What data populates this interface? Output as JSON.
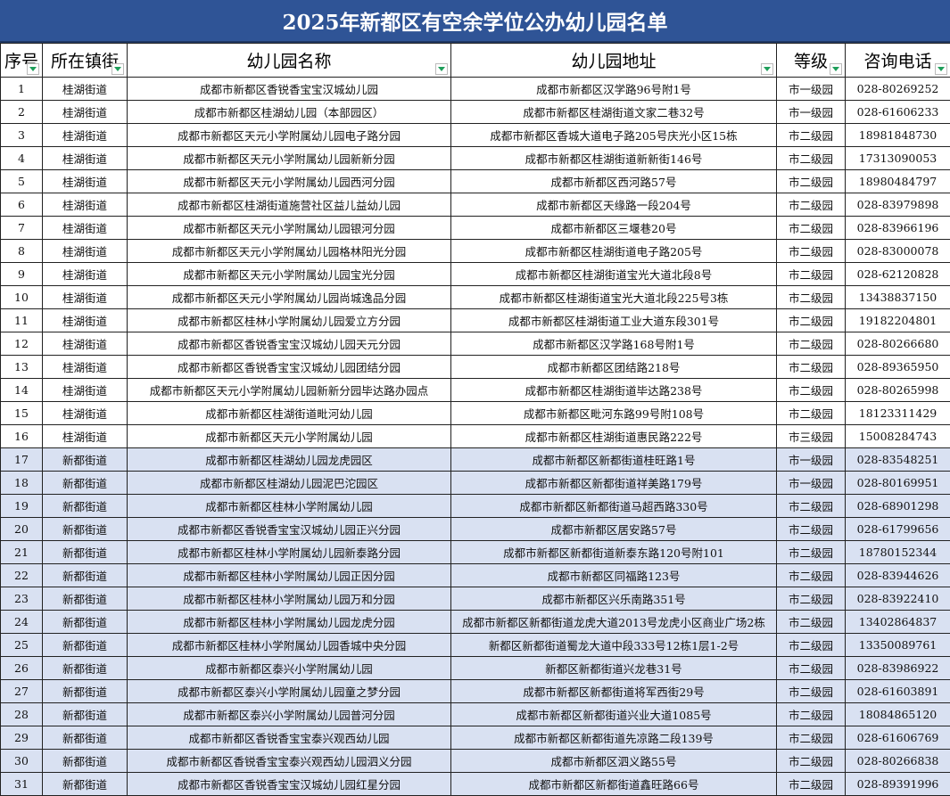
{
  "title": "2025年新都区有空余学位公办幼儿园名单",
  "colors": {
    "title_bg": "#2F5496",
    "highlight_row_bg": "#D9E1F2",
    "filter_arrow": "#1E9E5A"
  },
  "columns": [
    "序号",
    "所在镇街",
    "幼儿园名称",
    "幼儿园地址",
    "等级",
    "咨询电话"
  ],
  "rows": [
    [
      "1",
      "桂湖街道",
      "成都市新都区香锐香宝宝汉城幼儿园",
      "成都市新都区汉学路96号附1号",
      "市一级园",
      "028-80269252"
    ],
    [
      "2",
      "桂湖街道",
      "成都市新都区桂湖幼儿园（本部园区）",
      "成都市新都区桂湖街道文家二巷32号",
      "市一级园",
      "028-61606233"
    ],
    [
      "3",
      "桂湖街道",
      "成都市新都区天元小学附属幼儿园电子路分园",
      "成都市新都区香城大道电子路205号庆光小区15栋",
      "市二级园",
      "18981848730"
    ],
    [
      "4",
      "桂湖街道",
      "成都市新都区天元小学附属幼儿园新新分园",
      "成都市新都区桂湖街道新新街146号",
      "市二级园",
      "17313090053"
    ],
    [
      "5",
      "桂湖街道",
      "成都市新都区天元小学附属幼儿园西河分园",
      "成都市新都区西河路57号",
      "市二级园",
      "18980484797"
    ],
    [
      "6",
      "桂湖街道",
      "成都市新都区桂湖街道施营社区益儿益幼儿园",
      "成都市新都区天缘路一段204号",
      "市二级园",
      "028-83979898"
    ],
    [
      "7",
      "桂湖街道",
      "成都市新都区天元小学附属幼儿园银河分园",
      "成都市新都区三堰巷20号",
      "市二级园",
      "028-83966196"
    ],
    [
      "8",
      "桂湖街道",
      "成都市新都区天元小学附属幼儿园格林阳光分园",
      "成都市新都区桂湖街道电子路205号",
      "市二级园",
      "028-83000078"
    ],
    [
      "9",
      "桂湖街道",
      "成都市新都区天元小学附属幼儿园宝光分园",
      "成都市新都区桂湖街道宝光大道北段8号",
      "市二级园",
      "028-62120828"
    ],
    [
      "10",
      "桂湖街道",
      "成都市新都区天元小学附属幼儿园尚城逸品分园",
      "成都市新都区桂湖街道宝光大道北段225号3栋",
      "市二级园",
      "13438837150"
    ],
    [
      "11",
      "桂湖街道",
      "成都市新都区桂林小学附属幼儿园爱立方分园",
      "成都市新都区桂湖街道工业大道东段301号",
      "市二级园",
      "19182204801"
    ],
    [
      "12",
      "桂湖街道",
      "成都市新都区香锐香宝宝汉城幼儿园天元分园",
      "成都市新都区汉学路168号附1号",
      "市二级园",
      "028-80266680"
    ],
    [
      "13",
      "桂湖街道",
      "成都市新都区香锐香宝宝汉城幼儿园团结分园",
      "成都市新都区团结路218号",
      "市二级园",
      "028-89365950"
    ],
    [
      "14",
      "桂湖街道",
      "成都市新都区天元小学附属幼儿园新新分园毕达路办园点",
      "成都市新都区桂湖街道毕达路238号",
      "市二级园",
      "028-80265998"
    ],
    [
      "15",
      "桂湖街道",
      "成都市新都区桂湖街道毗河幼儿园",
      "成都市新都区毗河东路99号附108号",
      "市二级园",
      "18123311429"
    ],
    [
      "16",
      "桂湖街道",
      "成都市新都区天元小学附属幼儿园",
      "成都市新都区桂湖街道惠民路222号",
      "市三级园",
      "15008284743"
    ],
    [
      "17",
      "新都街道",
      "成都市新都区桂湖幼儿园龙虎园区",
      "成都市新都区新都街道桂旺路1号",
      "市一级园",
      "028-83548251"
    ],
    [
      "18",
      "新都街道",
      "成都市新都区桂湖幼儿园泥巴沱园区",
      "成都市新都区新都街道祥美路179号",
      "市一级园",
      "028-80169951"
    ],
    [
      "19",
      "新都街道",
      "成都市新都区桂林小学附属幼儿园",
      "成都市新都区新都街道马超西路330号",
      "市二级园",
      "028-68901298"
    ],
    [
      "20",
      "新都街道",
      "成都市新都区香锐香宝宝汉城幼儿园正兴分园",
      "成都市新都区居安路57号",
      "市二级园",
      "028-61799656"
    ],
    [
      "21",
      "新都街道",
      "成都市新都区桂林小学附属幼儿园新泰路分园",
      "成都市新都区新都街道新泰东路120号附101",
      "市二级园",
      "18780152344"
    ],
    [
      "22",
      "新都街道",
      "成都市新都区桂林小学附属幼儿园正因分园",
      "成都市新都区同福路123号",
      "市二级园",
      "028-83944626"
    ],
    [
      "23",
      "新都街道",
      "成都市新都区桂林小学附属幼儿园万和分园",
      "成都市新都区兴乐南路351号",
      "市二级园",
      "028-83922410"
    ],
    [
      "24",
      "新都街道",
      "成都市新都区桂林小学附属幼儿园龙虎分园",
      "成都市新都区新都街道龙虎大道2013号龙虎小区商业广场2栋",
      "市二级园",
      "13402864837"
    ],
    [
      "25",
      "新都街道",
      "成都市新都区桂林小学附属幼儿园香城中央分园",
      "新都区新都街道蜀龙大道中段333号12栋1层1-2号",
      "市二级园",
      "13350089761"
    ],
    [
      "26",
      "新都街道",
      "成都市新都区泰兴小学附属幼儿园",
      "新都区新都街道兴龙巷31号",
      "市二级园",
      "028-83986922"
    ],
    [
      "27",
      "新都街道",
      "成都市新都区泰兴小学附属幼儿园童之梦分园",
      "成都市新都区新都街道将军西街29号",
      "市二级园",
      "028-61603891"
    ],
    [
      "28",
      "新都街道",
      "成都市新都区泰兴小学附属幼儿园普河分园",
      "成都市新都区新都街道兴业大道1085号",
      "市二级园",
      "18084865120"
    ],
    [
      "29",
      "新都街道",
      "成都市新都区香锐香宝宝泰兴观西幼儿园",
      "成都市新都区新都街道先凉路二段139号",
      "市二级园",
      "028-61606769"
    ],
    [
      "30",
      "新都街道",
      "成都市新都区香锐香宝宝泰兴观西幼儿园泗义分园",
      "成都市新都区泗义路55号",
      "市二级园",
      "028-80266838"
    ],
    [
      "31",
      "新都街道",
      "成都市新都区香锐香宝宝汉城幼儿园红星分园",
      "成都市新都区新都街道鑫旺路66号",
      "市二级园",
      "028-89391996"
    ]
  ]
}
